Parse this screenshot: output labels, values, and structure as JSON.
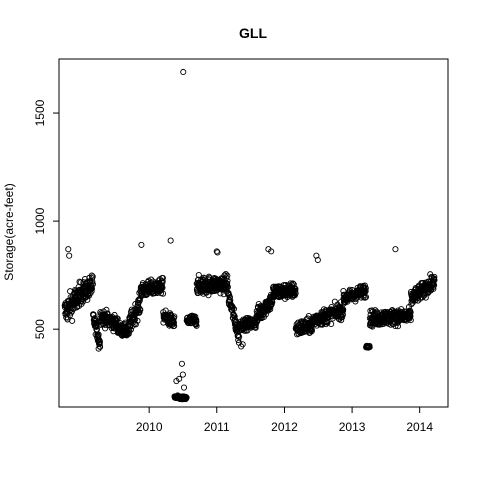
{
  "chart_data": {
    "type": "scatter",
    "title": "GLL",
    "xlabel": "",
    "ylabel": "Storage(acre-feet)",
    "x_ticks": [
      "2010",
      "2011",
      "2012",
      "2013",
      "2014"
    ],
    "y_ticks": [
      500,
      1000,
      1500
    ],
    "xlim": [
      "2009-03-01",
      "2014-12-01"
    ],
    "ylim": [
      140,
      1750
    ],
    "grid": false,
    "marker": "open-circle",
    "segments": [
      {
        "start": "2009-04-01",
        "end": "2009-06-15",
        "from": 580,
        "to": 650,
        "noise": 60
      },
      {
        "start": "2009-06-15",
        "end": "2009-09-01",
        "from": 660,
        "to": 700,
        "noise": 50
      },
      {
        "start": "2009-09-01",
        "end": "2009-10-10",
        "from": 560,
        "to": 430,
        "noise": 30
      },
      {
        "start": "2009-10-10",
        "end": "2010-01-15",
        "from": 560,
        "to": 520,
        "noise": 35
      },
      {
        "start": "2010-01-15",
        "end": "2010-03-15",
        "from": 500,
        "to": 490,
        "noise": 30
      },
      {
        "start": "2010-03-15",
        "end": "2010-05-15",
        "from": 520,
        "to": 620,
        "noise": 45
      },
      {
        "start": "2010-05-15",
        "end": "2010-09-15",
        "from": 680,
        "to": 700,
        "noise": 35
      },
      {
        "start": "2010-09-15",
        "end": "2010-11-15",
        "from": 560,
        "to": 530,
        "noise": 30
      },
      {
        "start": "2010-11-15",
        "end": "2011-01-20",
        "from": 185,
        "to": 180,
        "noise": 8
      },
      {
        "start": "2011-01-20",
        "end": "2011-03-15",
        "from": 540,
        "to": 540,
        "noise": 25
      },
      {
        "start": "2011-03-15",
        "end": "2011-08-31",
        "from": 700,
        "to": 710,
        "noise": 40
      },
      {
        "start": "2011-08-31",
        "end": "2011-10-31",
        "from": 660,
        "to": 460,
        "noise": 35
      },
      {
        "start": "2011-10-31",
        "end": "2012-01-31",
        "from": 520,
        "to": 530,
        "noise": 25
      },
      {
        "start": "2012-01-31",
        "end": "2012-04-30",
        "from": 560,
        "to": 640,
        "noise": 40
      },
      {
        "start": "2012-04-30",
        "end": "2012-08-31",
        "from": 670,
        "to": 680,
        "noise": 35
      },
      {
        "start": "2012-08-31",
        "end": "2012-11-30",
        "from": 500,
        "to": 520,
        "noise": 35
      },
      {
        "start": "2012-11-30",
        "end": "2013-05-15",
        "from": 540,
        "to": 590,
        "noise": 35
      },
      {
        "start": "2013-05-15",
        "end": "2013-09-15",
        "from": 640,
        "to": 680,
        "noise": 30
      },
      {
        "start": "2013-09-15",
        "end": "2013-10-05",
        "from": 420,
        "to": 420,
        "noise": 5
      },
      {
        "start": "2013-10-05",
        "end": "2014-05-15",
        "from": 550,
        "to": 560,
        "noise": 35
      },
      {
        "start": "2014-05-15",
        "end": "2014-09-20",
        "from": 640,
        "to": 720,
        "noise": 35
      }
    ],
    "extra_points": [
      {
        "x": "2011-01-01",
        "y": 1690
      },
      {
        "x": "2010-10-25",
        "y": 910
      },
      {
        "x": "2010-05-20",
        "y": 890
      },
      {
        "x": "2009-04-20",
        "y": 870
      },
      {
        "x": "2009-04-25",
        "y": 840
      },
      {
        "x": "2012-04-05",
        "y": 870
      },
      {
        "x": "2012-04-20",
        "y": 860
      },
      {
        "x": "2011-07-01",
        "y": 860
      },
      {
        "x": "2011-07-05",
        "y": 855
      },
      {
        "x": "2012-12-20",
        "y": 840
      },
      {
        "x": "2012-12-28",
        "y": 820
      },
      {
        "x": "2014-02-20",
        "y": 870
      },
      {
        "x": "2010-12-10",
        "y": 270
      },
      {
        "x": "2010-12-25",
        "y": 340
      },
      {
        "x": "2010-12-30",
        "y": 290
      },
      {
        "x": "2011-01-05",
        "y": 230
      },
      {
        "x": "2010-11-25",
        "y": 260
      },
      {
        "x": "2009-10-01",
        "y": 410
      },
      {
        "x": "2009-10-08",
        "y": 420
      },
      {
        "x": "2011-11-10",
        "y": 420
      },
      {
        "x": "2011-11-18",
        "y": 430
      }
    ]
  }
}
